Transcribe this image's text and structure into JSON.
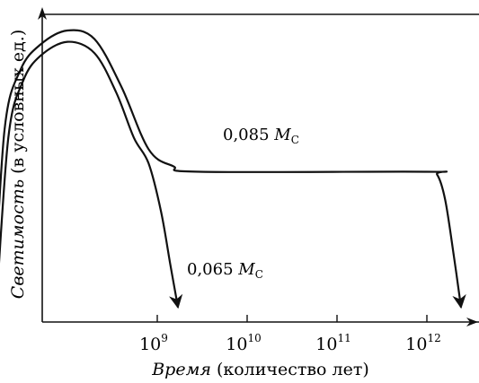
{
  "chart_data": {
    "type": "line",
    "title": "",
    "xlabel": {
      "italic_part": "Время",
      "rest": " (количество лет)"
    },
    "ylabel": {
      "italic_part": "Светимость",
      "rest": " (в условных ед.)"
    },
    "x_scale": "log",
    "x_ticks": [
      {
        "base": "10",
        "exp": "9"
      },
      {
        "base": "10",
        "exp": "10"
      },
      {
        "base": "10",
        "exp": "11"
      },
      {
        "base": "10",
        "exp": "12"
      }
    ],
    "y_ticks": [],
    "y_units": "условные единицы",
    "series": [
      {
        "name": "0,085 M_C",
        "label_main": "0,085",
        "label_symbol": "M",
        "label_sub": "C",
        "points": [
          [
            15000000.0,
            0.0
          ],
          [
            20000000.0,
            0.65
          ],
          [
            30000000.0,
            0.86
          ],
          [
            50000000.0,
            0.95
          ],
          [
            100000000.0,
            1.0
          ],
          [
            200000000.0,
            0.97
          ],
          [
            400000000.0,
            0.8
          ],
          [
            800000000.0,
            0.58
          ],
          [
            1500000000.0,
            0.52
          ],
          [
            3000000000.0,
            0.5
          ],
          [
            1000000000000.0,
            0.5
          ],
          [
            1300000000000.0,
            0.49
          ],
          [
            1600000000000.0,
            0.4
          ],
          [
            2000000000000.0,
            0.2
          ],
          [
            2400000000000.0,
            0.02
          ]
        ]
      },
      {
        "name": "0,065 M_C",
        "label_main": "0,065",
        "label_symbol": "M",
        "label_sub": "C",
        "points": [
          [
            16000000.0,
            0.0
          ],
          [
            22000000.0,
            0.62
          ],
          [
            32000000.0,
            0.82
          ],
          [
            50000000.0,
            0.91
          ],
          [
            100000000.0,
            0.96
          ],
          [
            200000000.0,
            0.92
          ],
          [
            350000000.0,
            0.78
          ],
          [
            550000000.0,
            0.62
          ],
          [
            800000000.0,
            0.53
          ],
          [
            1100000000.0,
            0.36
          ],
          [
            1400000000.0,
            0.17
          ],
          [
            1700000000.0,
            0.02
          ]
        ]
      }
    ],
    "grid": false,
    "legend": "none"
  }
}
